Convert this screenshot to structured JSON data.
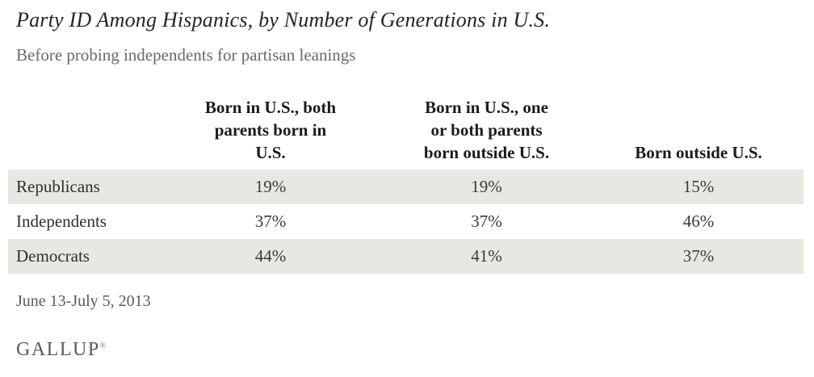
{
  "title": "Party ID Among Hispanics, by Number of Generations in U.S.",
  "subtitle": "Before probing independents for partisan leanings",
  "table": {
    "columns": [
      {
        "lines": [
          "Born in U.S., both",
          "parents born in",
          "U.S."
        ]
      },
      {
        "lines": [
          "Born in U.S., one",
          "or both parents",
          "born outside U.S."
        ]
      },
      {
        "lines": [
          "Born outside U.S."
        ]
      }
    ],
    "rows": [
      {
        "label": "Republicans",
        "values": [
          "19%",
          "19%",
          "15%"
        ]
      },
      {
        "label": "Independents",
        "values": [
          "37%",
          "37%",
          "46%"
        ]
      },
      {
        "label": "Democrats",
        "values": [
          "44%",
          "41%",
          "37%"
        ]
      }
    ]
  },
  "footer": {
    "date": "June 13-July 5, 2013",
    "brand": "GALLUP",
    "registered_mark": "®"
  },
  "colors": {
    "row_shaded": "#e8e8e3",
    "title_text": "#242424",
    "subtitle_text": "#6a6a6a",
    "header_text": "#1b1b1b",
    "cell_text": "#3a3a3a",
    "date_text": "#5a5a5a",
    "brand_text": "#58585a"
  },
  "chart_data": {
    "type": "table",
    "title": "Party ID Among Hispanics, by Number of Generations in U.S.",
    "subtitle": "Before probing independents for partisan leanings",
    "categories": [
      "Born in U.S., both parents born in U.S.",
      "Born in U.S., one or both parents born outside U.S.",
      "Born outside U.S."
    ],
    "series": [
      {
        "name": "Republicans",
        "values": [
          19,
          19,
          15
        ]
      },
      {
        "name": "Independents",
        "values": [
          37,
          37,
          46
        ]
      },
      {
        "name": "Democrats",
        "values": [
          44,
          41,
          37
        ]
      }
    ],
    "unit": "%",
    "date_note": "June 13-July 5, 2013",
    "source": "GALLUP"
  }
}
